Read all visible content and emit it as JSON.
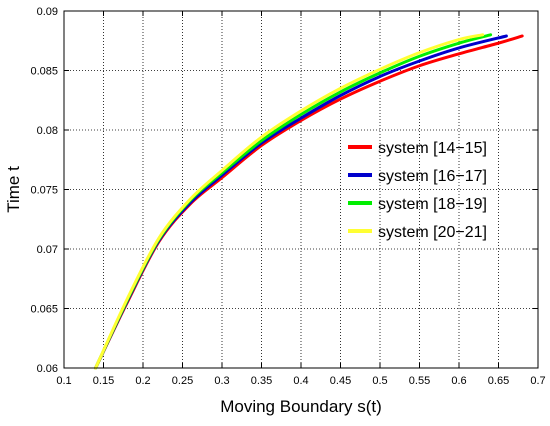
{
  "chart_data": {
    "type": "line",
    "xlabel": "Moving Boundary s(t)",
    "ylabel": "Time t",
    "xlim": [
      0.1,
      0.7
    ],
    "ylim": [
      0.06,
      0.09
    ],
    "x_ticks": [
      "0.1",
      "0.15",
      "0.2",
      "0.25",
      "0.3",
      "0.35",
      "0.4",
      "0.45",
      "0.5",
      "0.55",
      "0.6",
      "0.65",
      "0.7"
    ],
    "y_ticks": [
      "0.06",
      "0.065",
      "0.07",
      "0.075",
      "0.08",
      "0.085",
      "0.09"
    ],
    "grid": true,
    "grid_style": "dotted",
    "legend_position": "right",
    "series": [
      {
        "name": "system [14−15]",
        "color": "#ff0000",
        "x": [
          0.14,
          0.18,
          0.22,
          0.26,
          0.3,
          0.35,
          0.4,
          0.45,
          0.5,
          0.55,
          0.6,
          0.65,
          0.68
        ],
        "y": [
          0.06,
          0.0655,
          0.0706,
          0.0738,
          0.076,
          0.0787,
          0.0808,
          0.0826,
          0.0841,
          0.0854,
          0.0864,
          0.0873,
          0.0879
        ]
      },
      {
        "name": "system [16−17]",
        "color": "#0000cc",
        "x": [
          0.14,
          0.18,
          0.22,
          0.26,
          0.3,
          0.35,
          0.4,
          0.45,
          0.5,
          0.55,
          0.6,
          0.66
        ],
        "y": [
          0.06,
          0.0656,
          0.0707,
          0.0739,
          0.0762,
          0.0789,
          0.081,
          0.0829,
          0.0845,
          0.0858,
          0.0869,
          0.0879
        ]
      },
      {
        "name": "system [18−19]",
        "color": "#00ee00",
        "x": [
          0.14,
          0.18,
          0.22,
          0.26,
          0.3,
          0.35,
          0.4,
          0.45,
          0.5,
          0.55,
          0.6,
          0.64
        ],
        "y": [
          0.06,
          0.0657,
          0.0708,
          0.0741,
          0.0764,
          0.0791,
          0.0813,
          0.0832,
          0.0848,
          0.0862,
          0.0873,
          0.088
        ]
      },
      {
        "name": "system [20−21]",
        "color": "#ffff33",
        "x": [
          0.14,
          0.18,
          0.22,
          0.26,
          0.3,
          0.35,
          0.4,
          0.45,
          0.5,
          0.55,
          0.6,
          0.63
        ],
        "y": [
          0.06,
          0.0658,
          0.0709,
          0.0742,
          0.0766,
          0.0794,
          0.0816,
          0.0835,
          0.0851,
          0.0865,
          0.0876,
          0.088
        ]
      }
    ]
  }
}
